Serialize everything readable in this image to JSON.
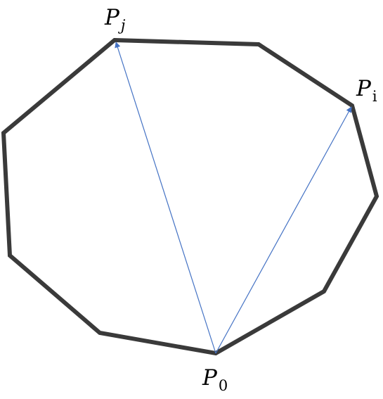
{
  "colors": {
    "polygon_stroke": "#3a3a3a",
    "vector_stroke": "#4472c4",
    "background": "#ffffff"
  },
  "labels": {
    "p0": {
      "base": "P",
      "sub": "0"
    },
    "pi": {
      "base": "P",
      "sub": "i"
    },
    "pj": {
      "base": "P",
      "sub": "j"
    }
  }
}
